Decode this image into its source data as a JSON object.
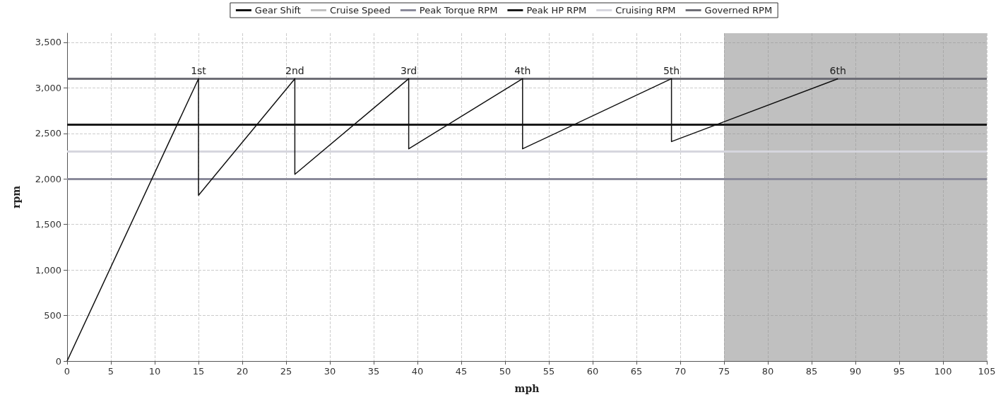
{
  "chart_data": {
    "type": "line",
    "xlabel": "mph",
    "ylabel": "rpm",
    "series": [
      {
        "name": "Gear Shift",
        "color": "#111111",
        "x": [
          0,
          15,
          15,
          26,
          26,
          39,
          39,
          52,
          52,
          69,
          69,
          88
        ],
        "values": [
          0,
          3100,
          1820,
          3100,
          2050,
          3100,
          2330,
          3100,
          2330,
          3100,
          2410,
          3100
        ]
      }
    ],
    "bands": [
      {
        "axis": "x",
        "from": 75,
        "to": 105,
        "label": "Cruise Speed",
        "color": "#8c8c8c"
      }
    ],
    "ref_lines": [
      {
        "axis": "y",
        "value": 2000,
        "label": "Peak Torque RPM",
        "color": "#8a8a9a"
      },
      {
        "axis": "y",
        "value": 2600,
        "label": "Peak HP RPM",
        "color": "#1a1a1a"
      },
      {
        "axis": "y",
        "value": 2300,
        "label": "Cruising RPM",
        "color": "#d6d6de"
      },
      {
        "axis": "y",
        "value": 3100,
        "label": "Governed RPM",
        "color": "#6e6e76"
      }
    ],
    "annotations": [
      {
        "text": "1st",
        "x": 15,
        "y": 3100
      },
      {
        "text": "2nd",
        "x": 26,
        "y": 3100
      },
      {
        "text": "3rd",
        "x": 39,
        "y": 3100
      },
      {
        "text": "4th",
        "x": 52,
        "y": 3100
      },
      {
        "text": "5th",
        "x": 69,
        "y": 3100
      },
      {
        "text": "6th",
        "x": 88,
        "y": 3100
      }
    ],
    "xlim": [
      0,
      105
    ],
    "xticks": [
      0,
      5,
      10,
      15,
      20,
      25,
      30,
      35,
      40,
      45,
      50,
      55,
      60,
      65,
      70,
      75,
      80,
      85,
      90,
      95,
      100,
      105
    ],
    "ylim": [
      0,
      3600
    ],
    "yticks": [
      0,
      500,
      {
        "value": 1000,
        "label": "1,000"
      },
      {
        "value": 1500,
        "label": "1,500"
      },
      {
        "value": 2000,
        "label": "2,000"
      },
      {
        "value": 2500,
        "label": "2,500"
      },
      {
        "value": 3000,
        "label": "3,000"
      },
      {
        "value": 3500,
        "label": "3,500"
      }
    ],
    "grid": true,
    "legend": "top",
    "marker": "none",
    "line_style": "solid"
  }
}
